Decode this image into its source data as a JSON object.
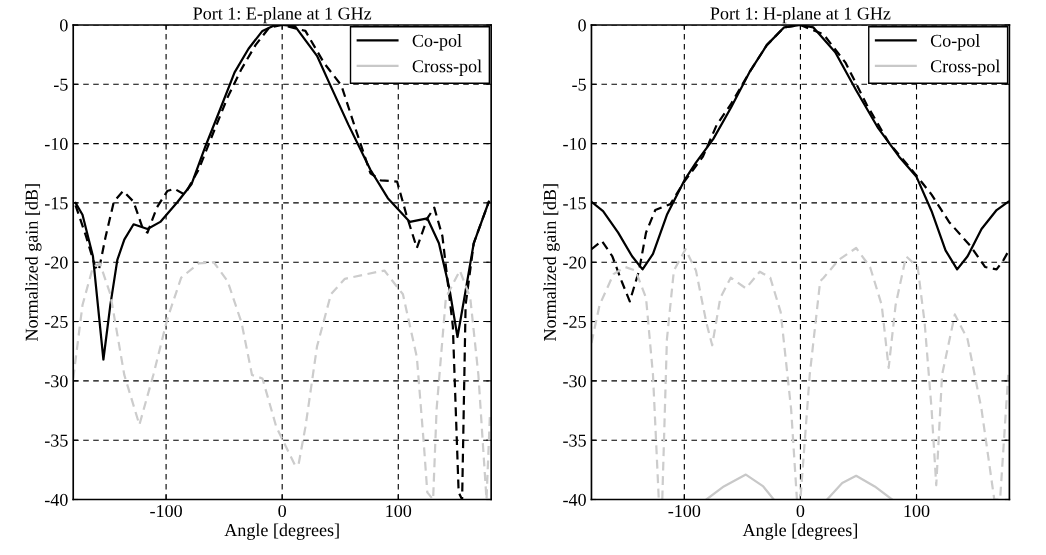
{
  "chart_data": [
    {
      "type": "line",
      "title": "Port 1: E-plane at 1 GHz",
      "xlabel": "Angle [degrees]",
      "ylabel": "Normalized gain [dB]",
      "xlim": [
        -180,
        180
      ],
      "xticks": [
        -100,
        0,
        100
      ],
      "ylim": [
        -40,
        0
      ],
      "yticks": [
        -40,
        -35,
        -30,
        -25,
        -20,
        -15,
        -10,
        -5,
        0
      ],
      "grid": true,
      "legend": "top right",
      "series": [
        {
          "name": "Co-pol",
          "color": "#000000",
          "line_style": "solid",
          "x": [
            -178,
            -172,
            -163,
            -154,
            -148,
            -142,
            -136,
            -128,
            -116,
            -105,
            -90,
            -78,
            -66,
            -53,
            -41,
            -29,
            -17,
            -6,
            0,
            11,
            30,
            42,
            57,
            76,
            91,
            110,
            125,
            135,
            144,
            151,
            158,
            165,
            178
          ],
          "values": [
            -15.0,
            -16.0,
            -19.5,
            -28.2,
            -23.6,
            -19.8,
            -18.1,
            -16.8,
            -17.2,
            -16.6,
            -14.9,
            -13.4,
            -10.2,
            -7.0,
            -4.0,
            -2.0,
            -0.5,
            0,
            0,
            -0.1,
            -2.6,
            -5.2,
            -8.4,
            -12.2,
            -14.6,
            -16.6,
            -16.3,
            -18.4,
            -22.2,
            -26.3,
            -22.4,
            -18.4,
            -14.9
          ]
        },
        {
          "color": "#000000",
          "line_style": "dashed",
          "x": [
            -178,
            -169,
            -161,
            -158,
            -152,
            -145,
            -137,
            -128,
            -120,
            -116,
            -108,
            -99,
            -93,
            -84,
            -72,
            -59,
            -47,
            -35,
            -23,
            -11,
            0,
            20,
            36,
            51,
            64,
            76,
            85,
            99,
            107,
            116,
            125,
            131,
            138,
            147,
            152,
            155,
            158,
            165,
            178
          ],
          "values": [
            -15.2,
            -17.8,
            -20.4,
            -20.7,
            -17.8,
            -14.9,
            -14.0,
            -14.9,
            -17.2,
            -17.5,
            -15.4,
            -14.0,
            -13.8,
            -14.3,
            -12.2,
            -9.0,
            -6.1,
            -3.7,
            -1.7,
            -0.2,
            0,
            -0.5,
            -3.2,
            -5.1,
            -9.0,
            -12.5,
            -13.1,
            -13.2,
            -16.0,
            -18.8,
            -16.3,
            -15.4,
            -17.8,
            -25.4,
            -39.4,
            -40,
            -23.6,
            -18.4,
            -14.9
          ]
        },
        {
          "name": "Cross-pol",
          "color": "#c8c8c8",
          "line_style": "solid"
        },
        {
          "color": "#cccccc",
          "line_style": "dashed",
          "x": [
            -180,
            -172,
            -163,
            -157,
            -148,
            -136,
            -123,
            -111,
            -99,
            -87,
            -72,
            -59,
            -47,
            -35,
            -26,
            -17,
            -5,
            11,
            14,
            20,
            30,
            42,
            54,
            73,
            88,
            104,
            116,
            122,
            125,
            130,
            133,
            141,
            153,
            162,
            169,
            176,
            179
          ],
          "values": [
            -29.8,
            -23.6,
            -20.4,
            -20.1,
            -22.7,
            -29.5,
            -33.7,
            -29.5,
            -24.8,
            -21.3,
            -20.1,
            -20.0,
            -21.6,
            -25.1,
            -29.5,
            -29.8,
            -33.9,
            -37.1,
            -37.1,
            -33.9,
            -27.1,
            -22.7,
            -21.4,
            -21.0,
            -20.7,
            -22.7,
            -28.0,
            -35.3,
            -39.4,
            -40,
            -32.4,
            -23.0,
            -20.7,
            -23.0,
            -29.5,
            -40,
            -32.7
          ]
        }
      ]
    },
    {
      "type": "line",
      "title": "Port 1: H-plane at 1 GHz",
      "xlabel": "Angle [degrees]",
      "ylabel": "Normalized gain [dB]",
      "xlim": [
        -180,
        180
      ],
      "xticks": [
        -100,
        0,
        100
      ],
      "ylim": [
        -40,
        0
      ],
      "yticks": [
        -40,
        -35,
        -30,
        -25,
        -20,
        -15,
        -10,
        -5,
        0
      ],
      "grid": true,
      "legend": "top right",
      "series": [
        {
          "name": "Co-pol",
          "color": "#000000",
          "line_style": "solid",
          "x": [
            -180,
            -170,
            -157,
            -145,
            -136,
            -127,
            -115,
            -100,
            -90,
            -75,
            -60,
            -44,
            -29,
            -14,
            0,
            11,
            30,
            48,
            67,
            85,
            100,
            113,
            125,
            135,
            144,
            156,
            169,
            179
          ],
          "values": [
            -14.9,
            -15.7,
            -17.5,
            -19.5,
            -20.6,
            -19.3,
            -16.0,
            -13.1,
            -11.6,
            -9.6,
            -7.0,
            -4.0,
            -1.7,
            -0.2,
            0,
            -0.2,
            -2.3,
            -5.5,
            -8.7,
            -11.1,
            -12.8,
            -15.7,
            -19.0,
            -20.6,
            -19.5,
            -17.2,
            -15.6,
            -14.9
          ]
        },
        {
          "color": "#000000",
          "line_style": "dashed",
          "x": [
            -180,
            -171,
            -162,
            -154,
            -147,
            -139,
            -133,
            -125,
            -112,
            -100,
            -84,
            -72,
            -60,
            -44,
            -29,
            -14,
            0,
            20,
            39,
            57,
            76,
            100,
            113,
            128,
            147,
            159,
            169,
            175,
            179
          ],
          "values": [
            -18.9,
            -18.2,
            -19.5,
            -21.6,
            -23.3,
            -20.7,
            -17.5,
            -15.6,
            -15.1,
            -13.2,
            -11.1,
            -8.4,
            -6.7,
            -4.0,
            -1.7,
            -0.2,
            0,
            -0.8,
            -3.2,
            -6.7,
            -9.9,
            -12.7,
            -14.3,
            -16.6,
            -18.7,
            -20.4,
            -20.6,
            -19.8,
            -19.1
          ]
        },
        {
          "name": "Cross-pol",
          "color": "#c8c8c8",
          "line_style": "solid",
          "x": [
            -81,
            -66,
            -47,
            -32,
            -23,
            0,
            23,
            36,
            48,
            64,
            79
          ],
          "values": [
            -40,
            -38.9,
            -37.9,
            -38.9,
            -40,
            null,
            -40,
            -38.6,
            -38.0,
            -38.9,
            -40
          ]
        },
        {
          "color": "#cccccc",
          "line_style": "dashed",
          "x": [
            -180,
            -173,
            -161,
            -151,
            -142,
            -133,
            -127,
            -122,
            -119,
            -115,
            -109,
            -99,
            -90,
            -81,
            -76,
            -69,
            -60,
            -47,
            -35,
            -26,
            -17,
            -8,
            -3,
            0,
            8,
            17,
            20,
            33,
            48,
            60,
            70,
            76,
            82,
            91,
            101,
            107,
            113,
            117,
            122,
            133,
            144,
            156,
            167,
            172,
            179
          ],
          "values": [
            -26.8,
            -23.6,
            -21.0,
            -20.4,
            -20.7,
            -23.0,
            -29.5,
            -40,
            -40,
            -26.5,
            -20.7,
            -18.9,
            -20.7,
            -25.1,
            -27.0,
            -23.0,
            -21.3,
            -22.2,
            -20.8,
            -21.3,
            -24.2,
            -32.4,
            -40,
            -40,
            -29.5,
            -21.6,
            -21.3,
            -19.8,
            -18.8,
            -20.4,
            -23.6,
            -28.9,
            -23.6,
            -19.5,
            -20.4,
            -25.1,
            -32.4,
            -38.8,
            -29.5,
            -24.4,
            -26.5,
            -32.4,
            -40,
            -40,
            -29.5
          ]
        }
      ]
    }
  ]
}
